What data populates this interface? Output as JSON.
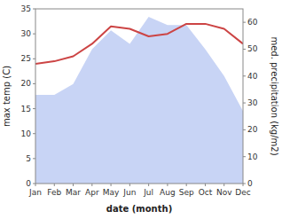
{
  "chart_data": {
    "type": "line",
    "categories": [
      "Jan",
      "Feb",
      "Mar",
      "Apr",
      "May",
      "Jun",
      "Jul",
      "Aug",
      "Sep",
      "Oct",
      "Nov",
      "Dec"
    ],
    "series": [
      {
        "type": "area",
        "axis": "y2",
        "color": "#c8d4f5",
        "values": [
          33,
          33,
          37,
          50,
          57,
          52,
          62,
          59,
          59,
          50,
          40,
          27
        ]
      },
      {
        "type": "line",
        "color": "#cc4444",
        "values": [
          24,
          24.5,
          25.5,
          28,
          31.5,
          31,
          29.5,
          30,
          32,
          32,
          31,
          28
        ]
      }
    ],
    "xlabel": "date (month)",
    "ylabel": "max temp (C)",
    "y2label": "med. precipitation (kg/m2)",
    "ylim": [
      0,
      35
    ],
    "yticks": [
      0,
      5,
      10,
      15,
      20,
      25,
      30,
      35
    ],
    "y2lim": [
      0,
      65
    ],
    "y2ticks": [
      0,
      10,
      20,
      30,
      40,
      50,
      60
    ]
  }
}
